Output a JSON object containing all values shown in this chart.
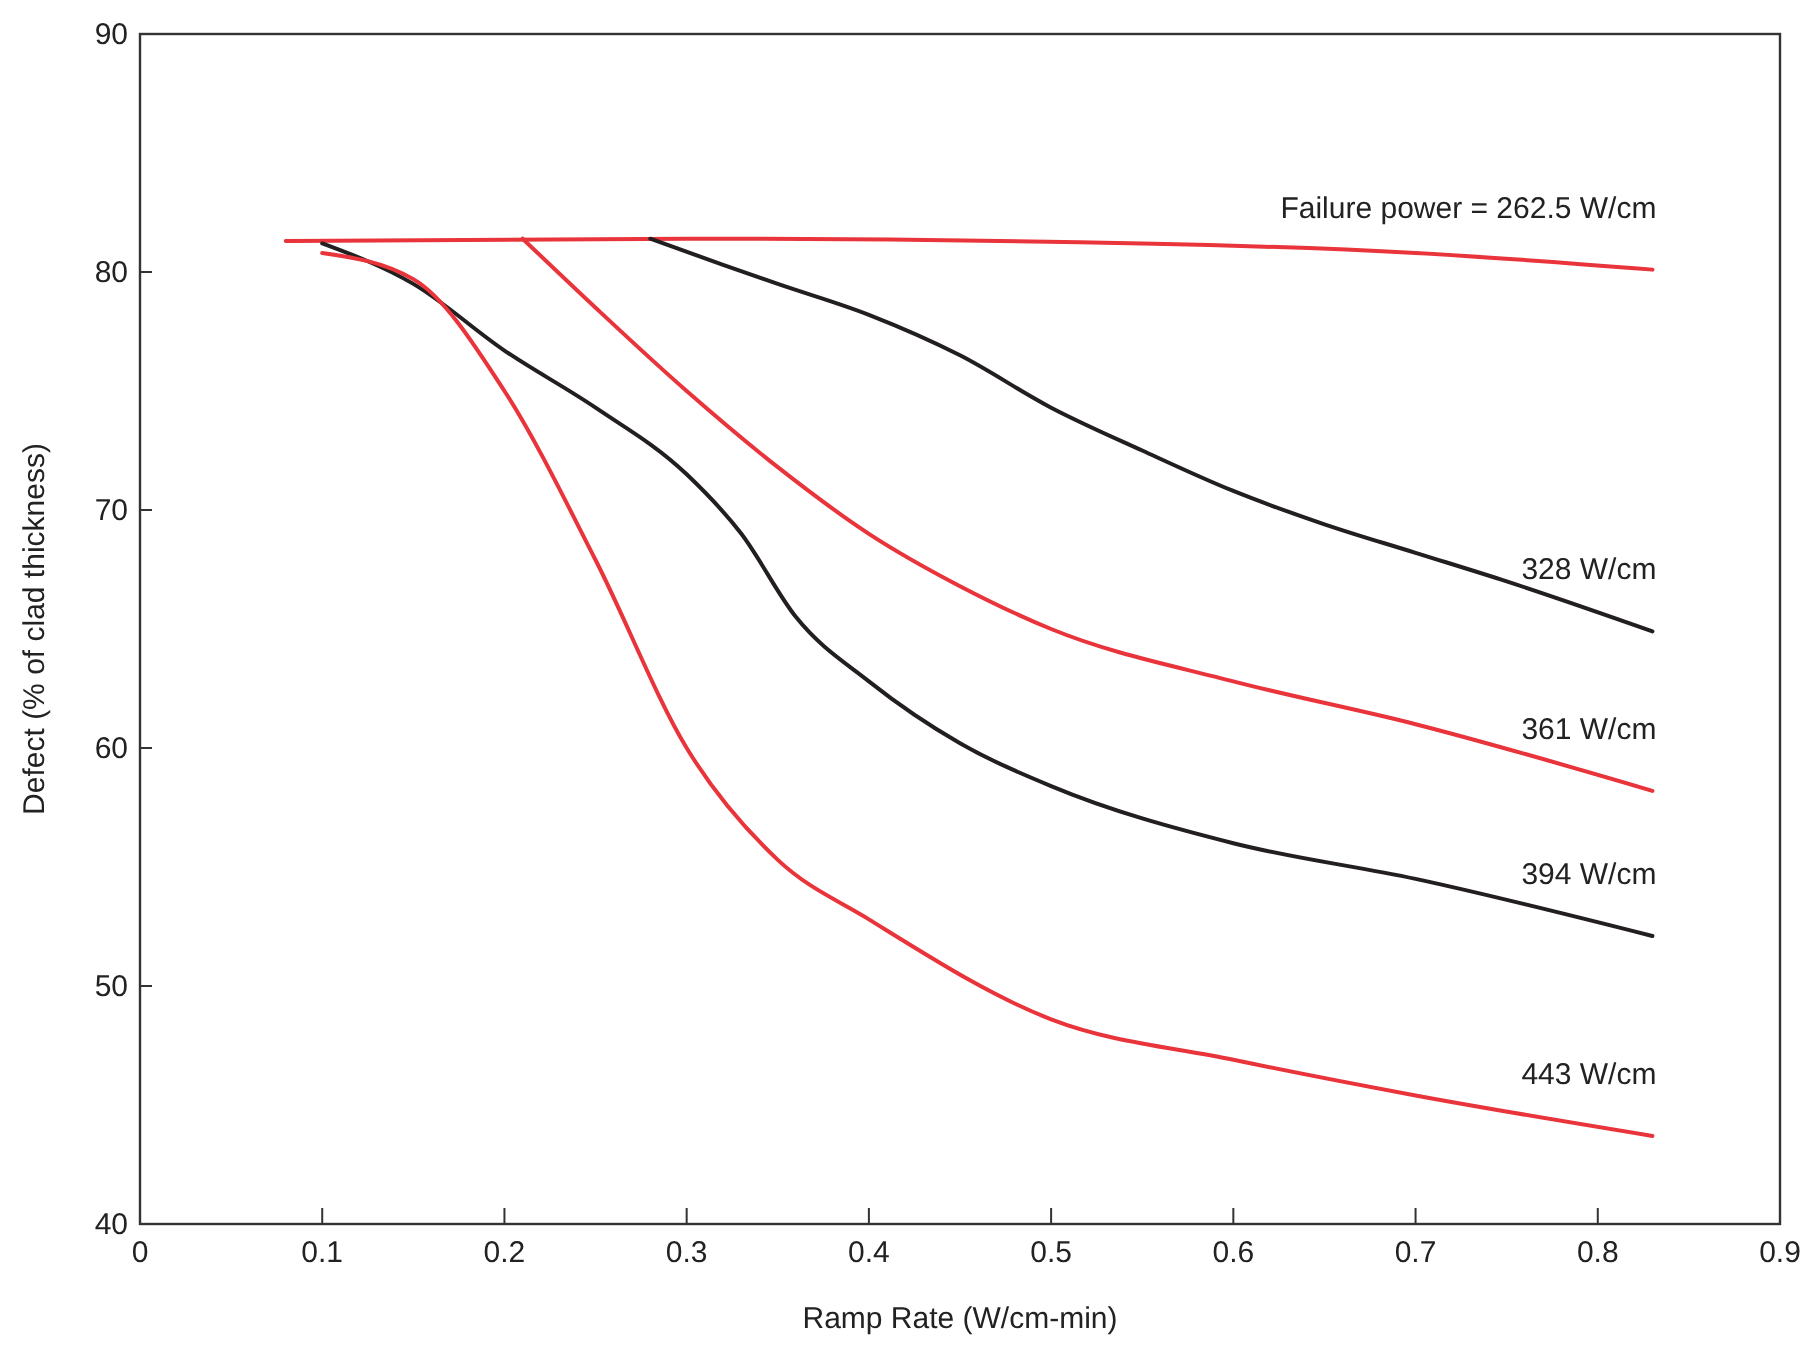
{
  "chart_data": {
    "type": "line",
    "xlabel": "Ramp Rate (W/cm-min)",
    "ylabel": "Defect (% of clad thickness)",
    "xlim": [
      0,
      0.9
    ],
    "xticks": [
      0,
      0.1,
      0.2,
      0.3,
      0.4,
      0.5,
      0.6,
      0.7,
      0.8,
      0.9
    ],
    "ylim": [
      40,
      90
    ],
    "yticks": [
      40,
      50,
      60,
      70,
      80,
      90
    ],
    "grid": false,
    "marker": "none",
    "line_style": "solid",
    "series": [
      {
        "name": "Failure power = 262.5 W/cm",
        "color": "#e8343a",
        "x": [
          0.08,
          0.3,
          0.55,
          0.7,
          0.83
        ],
        "values": [
          81.3,
          81.4,
          81.2,
          80.8,
          80.1
        ]
      },
      {
        "name": "328 W/cm",
        "color": "#231f20",
        "x": [
          0.28,
          0.32,
          0.35,
          0.4,
          0.45,
          0.5,
          0.55,
          0.6,
          0.65,
          0.7,
          0.75,
          0.83
        ],
        "values": [
          81.4,
          80.3,
          79.5,
          78.2,
          76.5,
          74.3,
          72.5,
          70.8,
          69.4,
          68.2,
          67,
          64.9
        ]
      },
      {
        "name": "361 W/cm",
        "color": "#e8343a",
        "x": [
          0.21,
          0.25,
          0.3,
          0.35,
          0.4,
          0.45,
          0.5,
          0.6,
          0.7,
          0.83
        ],
        "values": [
          81.4,
          78.5,
          75,
          71.8,
          69,
          66.8,
          65,
          62.8,
          61,
          58.2
        ]
      },
      {
        "name": "394 W/cm",
        "color": "#231f20",
        "x": [
          0.1,
          0.15,
          0.2,
          0.25,
          0.3,
          0.33,
          0.36,
          0.4,
          0.45,
          0.5,
          0.6,
          0.7,
          0.83
        ],
        "values": [
          81.2,
          79.5,
          76.7,
          74.3,
          71.5,
          69,
          65.5,
          62.8,
          60.2,
          58.4,
          56,
          54.5,
          52.1
        ]
      },
      {
        "name": "443 W/cm",
        "color": "#e8343a",
        "x": [
          0.1,
          0.15,
          0.2,
          0.25,
          0.3,
          0.35,
          0.4,
          0.5,
          0.6,
          0.7,
          0.83
        ],
        "values": [
          80.8,
          79.7,
          75,
          67.9,
          60,
          55.3,
          52.8,
          48.6,
          46.9,
          45.4,
          43.7
        ]
      }
    ]
  }
}
